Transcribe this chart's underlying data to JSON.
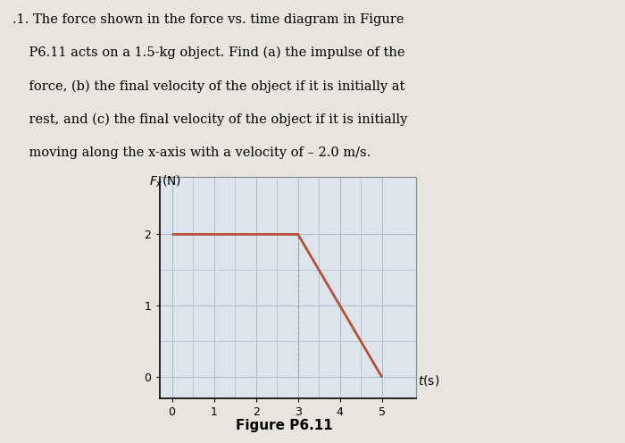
{
  "line_x": [
    0,
    3,
    5
  ],
  "line_y": [
    2,
    2,
    0
  ],
  "line_color": "#b5503a",
  "line_width": 2.0,
  "dashed_x": 3,
  "dashed_color": "#999999",
  "dashed_linewidth": 0.8,
  "xlabel": "t(s)",
  "ylabel": "F_x(N)",
  "xlim": [
    -0.3,
    5.8
  ],
  "ylim": [
    -0.3,
    2.8
  ],
  "xticks": [
    0,
    1,
    2,
    3,
    4,
    5
  ],
  "yticks": [
    0,
    1,
    2
  ],
  "caption": "Figure P6.11",
  "grid_color": "#aabbcc",
  "grid_linewidth": 0.5,
  "page_background": "#e8e4de",
  "chart_background": "#dde4ec",
  "chart_border": "#aaaaaa",
  "tick_fontsize": 9,
  "label_fontsize": 10,
  "caption_fontsize": 11,
  "text_lines": [
    ".1. The force shown in the force vs. time diagram in Figure",
    "    P6.11 acts on a 1.5-kg object. Find (a) the impulse of the",
    "    force, (b) the final velocity of the object if it is initially at",
    "    rest, and (c) the final velocity of the object if it is initially",
    "    moving along the x-axis with a velocity of – 2.0 m/s."
  ]
}
